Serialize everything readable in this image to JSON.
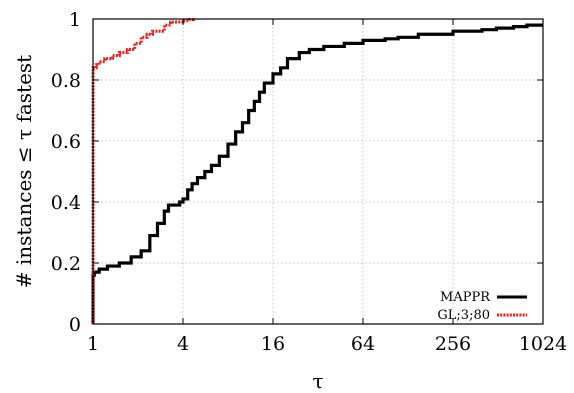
{
  "chart_data": {
    "type": "line",
    "xlabel": "τ",
    "ylabel": "# instances ≤ τ fastest",
    "x_scale": "log2",
    "xlim": [
      1,
      1024
    ],
    "ylim": [
      0,
      1
    ],
    "x_ticks": [
      1,
      4,
      16,
      64,
      256,
      1024
    ],
    "x_tick_labels": [
      "1",
      "4",
      "16",
      "64",
      "256",
      "1024"
    ],
    "y_ticks": [
      0,
      0.2,
      0.4,
      0.6,
      0.8,
      1
    ],
    "y_tick_labels": [
      "0",
      "0.2",
      "0.4",
      "0.6",
      "0.8",
      "1"
    ],
    "grid": true,
    "legend_position": "bottom-right",
    "series": [
      {
        "name": "MAPPR",
        "color": "#000000",
        "style": "solid",
        "x": [
          1,
          1.02,
          1.1,
          1.25,
          1.5,
          1.8,
          2.1,
          2.4,
          2.7,
          3.0,
          3.2,
          3.5,
          3.8,
          4.0,
          4.3,
          4.6,
          5.0,
          5.6,
          6.2,
          7.0,
          8.0,
          9.0,
          10.0,
          11.0,
          12.0,
          13.0,
          14.0,
          16.0,
          18.0,
          20.0,
          24.0,
          28.0,
          35.0,
          48.0,
          64.0,
          90.0,
          110.0,
          150.0,
          200.0,
          256.0,
          320.0,
          400.0,
          500.0,
          650.0,
          800.0,
          1024.0
        ],
        "y": [
          0.16,
          0.17,
          0.18,
          0.19,
          0.2,
          0.22,
          0.24,
          0.29,
          0.33,
          0.37,
          0.39,
          0.39,
          0.4,
          0.41,
          0.44,
          0.46,
          0.48,
          0.5,
          0.52,
          0.55,
          0.59,
          0.63,
          0.66,
          0.7,
          0.73,
          0.76,
          0.79,
          0.82,
          0.84,
          0.87,
          0.89,
          0.9,
          0.91,
          0.92,
          0.93,
          0.935,
          0.94,
          0.95,
          0.95,
          0.96,
          0.96,
          0.965,
          0.97,
          0.975,
          0.98,
          0.98
        ]
      },
      {
        "name": "GL;3;80",
        "color": "#e0201a",
        "style": "dashed",
        "x": [
          1,
          1.05,
          1.1,
          1.2,
          1.35,
          1.5,
          1.7,
          1.9,
          2.1,
          2.3,
          2.5,
          2.7,
          3.0,
          3.3,
          3.6,
          4.0,
          4.4,
          4.7
        ],
        "y": [
          0.84,
          0.85,
          0.86,
          0.87,
          0.88,
          0.89,
          0.9,
          0.92,
          0.94,
          0.95,
          0.96,
          0.96,
          0.98,
          0.99,
          0.99,
          0.995,
          0.998,
          1.0
        ]
      }
    ]
  }
}
